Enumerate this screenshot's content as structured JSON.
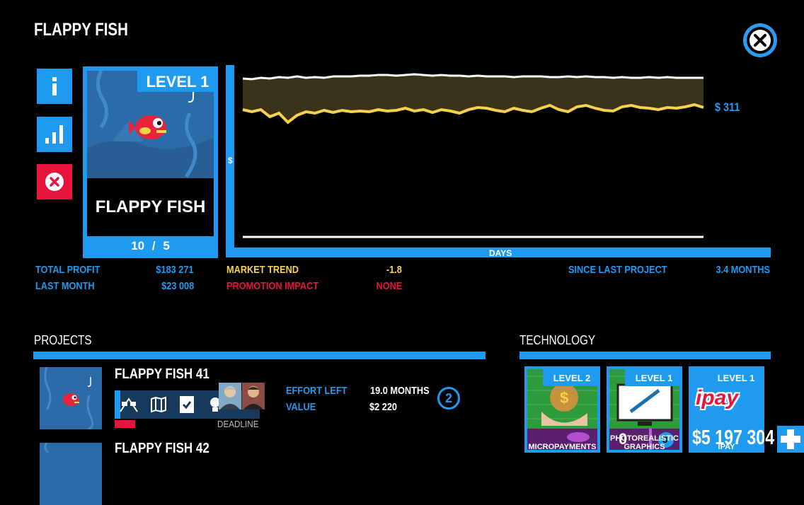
{
  "header": {
    "title": "FLAPPY FISH"
  },
  "game_card": {
    "level": "LEVEL 1",
    "name": "FLAPPY FISH",
    "counter_current": "10",
    "counter_sep": "/",
    "counter_total": "5"
  },
  "chart_data": {
    "type": "area",
    "xlabel": "DAYS",
    "ylabel": "$",
    "current_value_label": "$ 311",
    "series": [
      {
        "color": "#ffffff",
        "values": [
          111,
          112,
          110,
          111,
          109,
          110,
          108,
          110,
          109,
          110,
          108,
          108,
          108,
          107,
          107,
          106,
          106,
          107,
          106,
          105,
          106,
          107,
          106,
          107,
          107,
          108,
          107,
          108,
          108,
          108,
          109,
          108,
          108,
          108,
          109,
          109,
          108,
          109,
          108,
          109,
          109,
          110,
          109,
          110,
          110,
          109,
          110,
          109,
          110,
          110,
          110,
          110
        ]
      },
      {
        "color": "#f6d24c",
        "values": [
          155,
          158,
          155,
          165,
          160,
          173,
          163,
          158,
          160,
          156,
          159,
          156,
          158,
          157,
          158,
          155,
          157,
          156,
          153,
          157,
          155,
          159,
          155,
          157,
          160,
          155,
          152,
          153,
          156,
          158,
          153,
          156,
          158,
          153,
          149,
          155,
          158,
          151,
          149,
          153,
          156,
          157,
          151,
          149,
          152,
          153,
          155,
          152,
          153,
          151,
          148,
          152
        ]
      },
      {
        "color": "#ffffff",
        "values": [
          335,
          335
        ]
      }
    ],
    "band_color": "#3b3319"
  },
  "stats": {
    "total_profit_label": "TOTAL PROFIT",
    "total_profit": "$183 271",
    "last_month_label": "LAST MONTH",
    "last_month": "$23 008",
    "market_trend_label": "MARKET TREND",
    "market_trend": "-1.8",
    "promotion_impact_label": "PROMOTION IMPACT",
    "promotion_impact": "NONE",
    "since_last_label": "SINCE LAST PROJECT",
    "since_last": "3.4 MONTHS"
  },
  "projects": {
    "heading": "PROJECTS",
    "items": [
      {
        "name": "FLAPPY FISH 41",
        "effort_label": "EFFORT LEFT",
        "effort": "19.0 MONTHS",
        "value_label": "VALUE",
        "value": "$2 220",
        "badge": "2",
        "deadline_label": "DEADLINE"
      },
      {
        "name": "FLAPPY FISH 42"
      }
    ]
  },
  "technology": {
    "heading": "TECHNOLOGY",
    "cards": [
      {
        "level": "LEVEL 2",
        "label": "MICROPAYMENTS"
      },
      {
        "level": "LEVEL 1",
        "label": "PHOTOREALISTIC GRAPHICS",
        "overlay_number": "0",
        "badge": "3"
      },
      {
        "level": "LEVEL 1",
        "label": "IPAY",
        "logo_text": "ipay"
      }
    ]
  },
  "footer": {
    "money": "$5 197 304"
  },
  "colors": {
    "accent": "#1e9bf0",
    "danger": "#e8143c",
    "warning": "#f6d24c"
  }
}
